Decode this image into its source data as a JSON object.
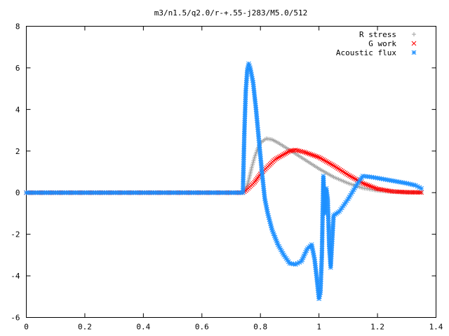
{
  "chart_data": {
    "type": "scatter",
    "title": "m3/n1.5/q2.0/r-+.55-j283/M5.0/512",
    "xlabel": "",
    "ylabel": "",
    "xlim": [
      0,
      1.4
    ],
    "ylim": [
      -6,
      8
    ],
    "xticks": [
      0,
      0.2,
      0.4,
      0.6,
      0.8,
      1,
      1.2,
      1.4
    ],
    "xtick_labels": [
      "0",
      "0.2",
      "0.4",
      "0.6",
      "0.8",
      "1",
      "1.2",
      "1.4"
    ],
    "yticks": [
      -6,
      -4,
      -2,
      0,
      2,
      4,
      6,
      8
    ],
    "ytick_labels": [
      "-6",
      "-4",
      "-2",
      "0",
      "2",
      "4",
      "6",
      "8"
    ],
    "grid": false,
    "legend_position": "top-right",
    "series": [
      {
        "name": "R stress",
        "marker": "+",
        "color": "#a0a0a0",
        "points": [
          [
            0.0,
            0
          ],
          [
            0.74,
            0
          ],
          [
            0.75,
            0.15
          ],
          [
            0.76,
            0.6
          ],
          [
            0.77,
            1.2
          ],
          [
            0.78,
            1.7
          ],
          [
            0.79,
            2.1
          ],
          [
            0.8,
            2.4
          ],
          [
            0.82,
            2.6
          ],
          [
            0.84,
            2.55
          ],
          [
            0.86,
            2.4
          ],
          [
            0.9,
            2.05
          ],
          [
            0.95,
            1.6
          ],
          [
            1.0,
            1.15
          ],
          [
            1.05,
            0.75
          ],
          [
            1.1,
            0.45
          ],
          [
            1.15,
            0.22
          ],
          [
            1.2,
            0.1
          ],
          [
            1.25,
            0.04
          ],
          [
            1.3,
            0.02
          ],
          [
            1.35,
            0.01
          ]
        ]
      },
      {
        "name": "G work",
        "marker": "x",
        "color": "#ff0000",
        "points": [
          [
            0.0,
            0
          ],
          [
            0.74,
            0
          ],
          [
            0.75,
            0.1
          ],
          [
            0.78,
            0.5
          ],
          [
            0.8,
            0.9
          ],
          [
            0.85,
            1.6
          ],
          [
            0.9,
            2.0
          ],
          [
            0.92,
            2.05
          ],
          [
            0.95,
            1.95
          ],
          [
            1.0,
            1.7
          ],
          [
            1.05,
            1.3
          ],
          [
            1.1,
            0.85
          ],
          [
            1.15,
            0.45
          ],
          [
            1.2,
            0.18
          ],
          [
            1.25,
            0.06
          ],
          [
            1.3,
            0.02
          ],
          [
            1.35,
            0.01
          ]
        ]
      },
      {
        "name": "Acoustic flux",
        "marker": "*",
        "color": "#1e90ff",
        "points": [
          [
            0.0,
            0
          ],
          [
            0.74,
            0
          ],
          [
            0.745,
            2.85
          ],
          [
            0.75,
            4.9
          ],
          [
            0.755,
            5.9
          ],
          [
            0.76,
            6.2
          ],
          [
            0.765,
            6.0
          ],
          [
            0.775,
            5.3
          ],
          [
            0.785,
            4.0
          ],
          [
            0.795,
            2.5
          ],
          [
            0.805,
            1.0
          ],
          [
            0.815,
            -0.3
          ],
          [
            0.825,
            -1.0
          ],
          [
            0.84,
            -1.8
          ],
          [
            0.86,
            -2.5
          ],
          [
            0.88,
            -3.0
          ],
          [
            0.9,
            -3.4
          ],
          [
            0.92,
            -3.45
          ],
          [
            0.94,
            -3.3
          ],
          [
            0.96,
            -2.7
          ],
          [
            0.975,
            -2.5
          ],
          [
            0.985,
            -3.2
          ],
          [
            0.99,
            -3.8
          ],
          [
            1.0,
            -5.1
          ],
          [
            1.005,
            -4.8
          ],
          [
            1.01,
            -3.0
          ],
          [
            1.015,
            0.8
          ],
          [
            1.02,
            -1.0
          ],
          [
            1.025,
            0.2
          ],
          [
            1.03,
            -0.3
          ],
          [
            1.035,
            -2.6
          ],
          [
            1.04,
            -3.6
          ],
          [
            1.05,
            -1.1
          ],
          [
            1.07,
            -0.9
          ],
          [
            1.1,
            -0.3
          ],
          [
            1.13,
            0.4
          ],
          [
            1.15,
            0.8
          ],
          [
            1.18,
            0.75
          ],
          [
            1.22,
            0.65
          ],
          [
            1.26,
            0.55
          ],
          [
            1.3,
            0.45
          ],
          [
            1.33,
            0.35
          ],
          [
            1.35,
            0.2
          ]
        ]
      }
    ]
  }
}
